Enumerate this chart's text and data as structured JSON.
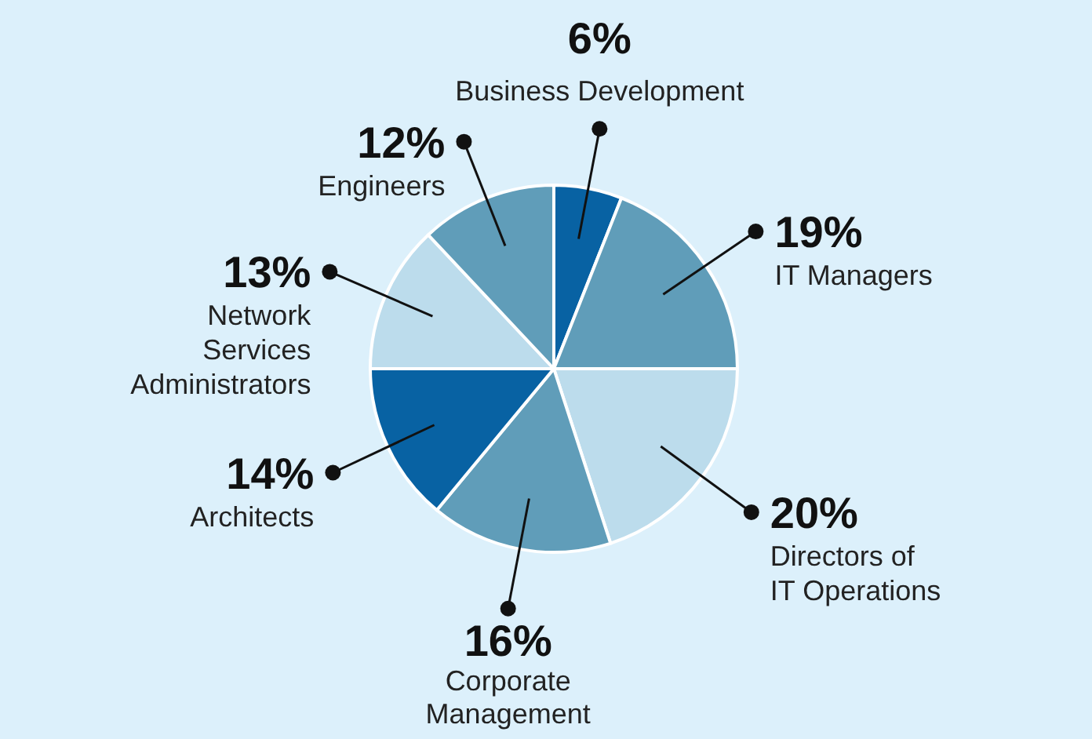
{
  "chart_data": {
    "type": "pie",
    "categories": [
      "Business Development",
      "IT Managers",
      "Directors of IT Operations",
      "Corporate Management",
      "Architects",
      "Network Services Administrators",
      "Engineers"
    ],
    "values": [
      6,
      19,
      20,
      16,
      14,
      13,
      12
    ],
    "value_labels": [
      "6%",
      "19%",
      "20%",
      "16%",
      "14%",
      "13%",
      "12%"
    ],
    "colors": [
      "#0862a3",
      "#609db9",
      "#bcdcec",
      "#609db9",
      "#0862a3",
      "#bcdcec",
      "#609db9"
    ]
  }
}
